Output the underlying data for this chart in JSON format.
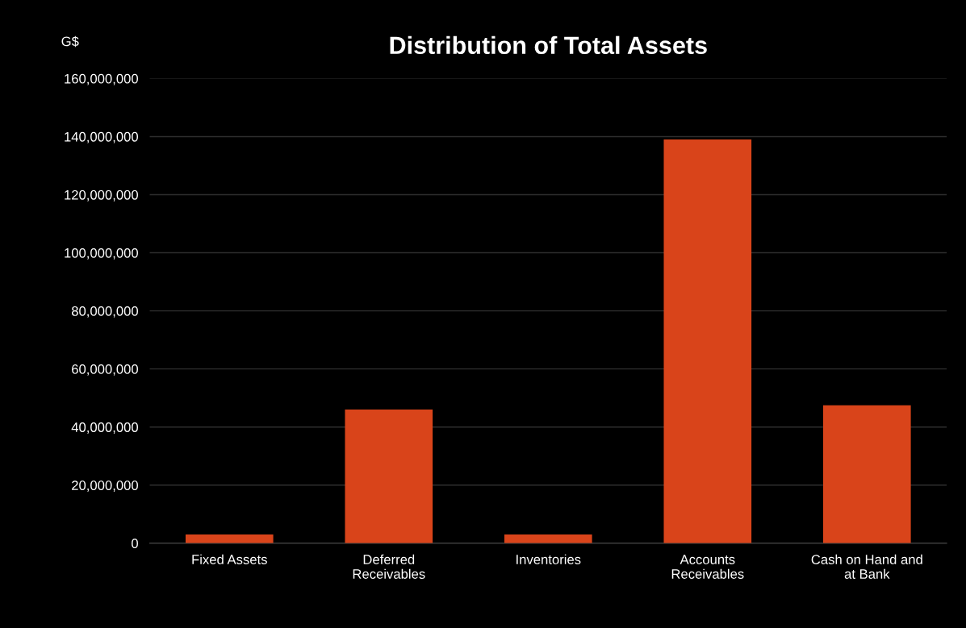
{
  "chart_data": {
    "type": "bar",
    "title": "Distribution of Total Assets",
    "ylabel": "G$",
    "categories": [
      "Fixed Assets",
      "Deferred\nReceivables",
      "Inventories",
      "Accounts\nReceivables",
      "Cash on Hand and\nat Bank"
    ],
    "values": [
      3000000,
      46000000,
      3000000,
      139000000,
      47500000
    ],
    "color": "#d9441a",
    "ylim": [
      0,
      160000000
    ],
    "yticks": [
      {
        "value": 0,
        "label": "0"
      },
      {
        "value": 20000000,
        "label": "20,000,000"
      },
      {
        "value": 40000000,
        "label": "40,000,000"
      },
      {
        "value": 60000000,
        "label": "60,000,000"
      },
      {
        "value": 80000000,
        "label": "80,000,000"
      },
      {
        "value": 100000000,
        "label": "100,000,000"
      },
      {
        "value": 120000000,
        "label": "120,000,000"
      },
      {
        "value": 140000000,
        "label": "140,000,000"
      },
      {
        "value": 160000000,
        "label": "160,000,000"
      }
    ],
    "grid": "y"
  }
}
